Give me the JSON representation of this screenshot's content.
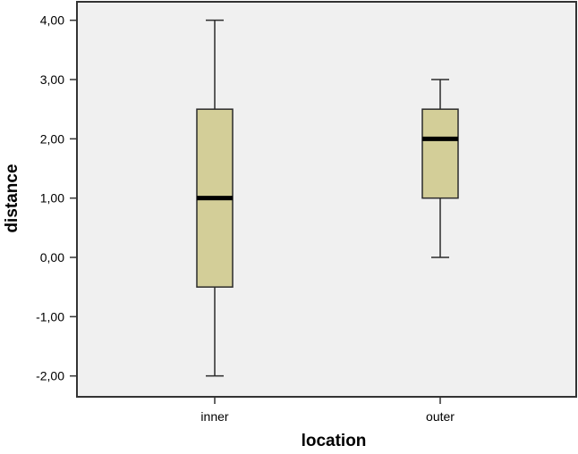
{
  "chart_data": {
    "type": "boxplot",
    "title": "",
    "xlabel": "location",
    "ylabel": "distance",
    "ylim": [
      -2.35,
      4.3
    ],
    "yticks": [
      4.0,
      3.0,
      2.0,
      1.0,
      0.0,
      -1.0,
      -2.0
    ],
    "ytick_labels": [
      "4,00",
      "3,00",
      "2,00",
      "1,00",
      "0,00",
      "-1,00",
      "-2,00"
    ],
    "categories": [
      "inner",
      "outer"
    ],
    "series": [
      {
        "name": "inner",
        "min": -2.0,
        "q1": -0.5,
        "median": 1.0,
        "q3": 2.5,
        "max": 4.0
      },
      {
        "name": "outer",
        "min": 0.0,
        "q1": 1.0,
        "median": 2.0,
        "q3": 2.5,
        "max": 3.0
      }
    ],
    "grid": false,
    "legend": null,
    "colors": {
      "plot_background": "#f0f0f0",
      "box_fill": "#d3ce98",
      "box_stroke": "#2b2b2b",
      "median": "#000000",
      "axis": "#333333"
    }
  }
}
